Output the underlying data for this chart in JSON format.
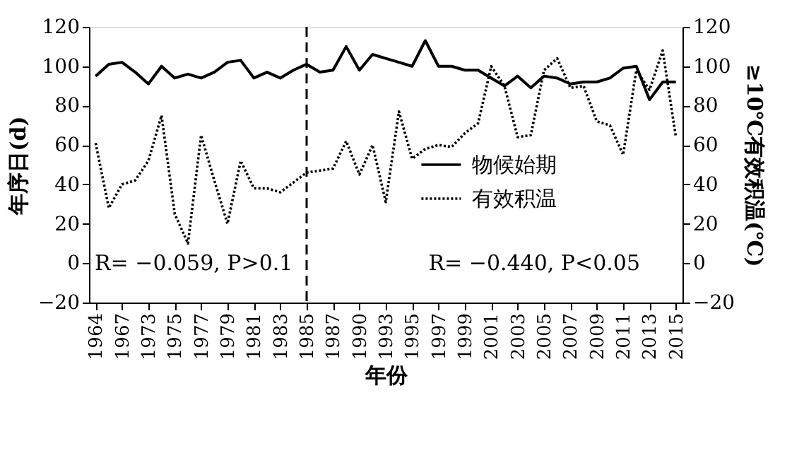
{
  "chart_data": {
    "type": "line",
    "xlabel": "年份",
    "ylabel": "年序日(d)",
    "y2label": "≥10℃有效积温(℃)",
    "categories": [
      "1964",
      null,
      "1967",
      null,
      "1973",
      null,
      "1975",
      null,
      "1977",
      null,
      "1979",
      null,
      "1981",
      null,
      "1983",
      null,
      "1985",
      null,
      "1987",
      null,
      "1990",
      null,
      "1993",
      null,
      "1995",
      null,
      "1997",
      null,
      "1999",
      null,
      "2001",
      null,
      "2003",
      null,
      "2005",
      null,
      "2007",
      null,
      "2009",
      null,
      "2011",
      null,
      "2013",
      null,
      "2015"
    ],
    "series": [
      {
        "name": "物候始期",
        "color": "#000000",
        "line_style": "solid",
        "values": [
          95,
          101,
          102,
          97,
          91,
          100,
          94,
          96,
          94,
          97,
          102,
          103,
          94,
          97,
          94,
          98,
          101,
          97,
          98,
          110,
          98,
          106,
          104,
          102,
          100,
          113,
          100,
          100,
          98,
          98,
          94,
          90,
          95,
          89,
          95,
          94,
          91,
          92,
          92,
          94,
          99,
          100,
          83,
          92,
          92
        ]
      },
      {
        "name": "有效积温",
        "color": "#000000",
        "line_style": "dotted",
        "axis": "y2",
        "values": [
          61,
          28,
          40,
          42,
          52,
          75,
          25,
          10,
          65,
          42,
          20,
          52,
          38,
          38,
          36,
          41,
          46,
          47,
          48,
          62,
          45,
          60,
          31,
          77,
          53,
          58,
          60,
          59,
          66,
          71,
          100,
          90,
          64,
          65,
          98,
          104,
          89,
          90,
          72,
          70,
          55,
          98,
          88,
          108,
          64
        ]
      }
    ],
    "ylim": [
      -20,
      120
    ],
    "yticks": [
      -20,
      0,
      20,
      40,
      60,
      80,
      100,
      120
    ],
    "y2lim": [
      -20,
      120
    ],
    "y2ticks": [
      -20,
      0,
      20,
      40,
      60,
      80,
      100,
      120
    ],
    "ref_lines": [
      {
        "axis": "x",
        "value": "1985",
        "line_style": "dashed",
        "color": "#000000"
      }
    ],
    "annotations": [
      "R= −0.059, P>0.1",
      "R= −0.440, P<0.05"
    ],
    "legend": "right",
    "grid": false,
    "marker": "none"
  }
}
